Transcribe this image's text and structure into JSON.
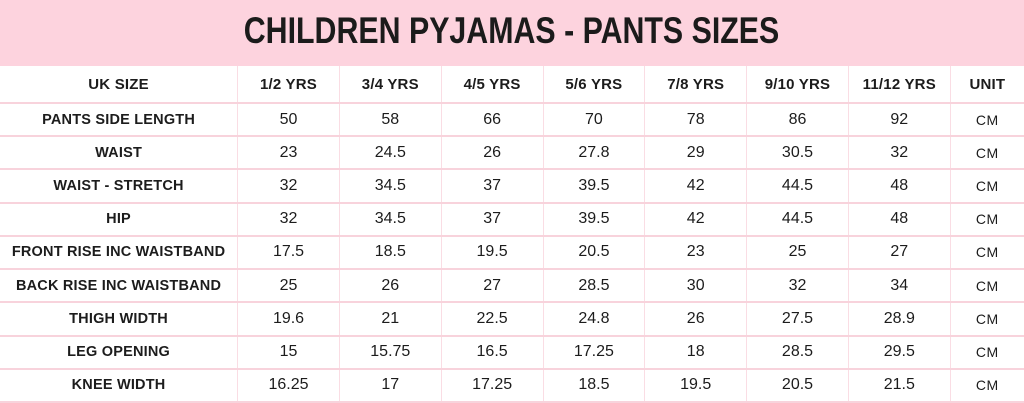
{
  "banner": {
    "background_color": "#fdd3de",
    "text_color": "#1b1b1b"
  },
  "table_style": {
    "grid_line_color": "#f8d3dc",
    "cell_background": "#ffffff"
  },
  "chart_data": {
    "type": "table",
    "title": "CHILDREN PYJAMAS - PANTS SIZES",
    "columns": [
      "UK SIZE",
      "1/2 YRS",
      "3/4 YRS",
      "4/5 YRS",
      "5/6 YRS",
      "7/8 YRS",
      "9/10 YRS",
      "11/12 YRS",
      "UNIT"
    ],
    "rows": [
      {
        "label": "PANTS SIDE LENGTH",
        "values": [
          "50",
          "58",
          "66",
          "70",
          "78",
          "86",
          "92"
        ],
        "unit": "CM"
      },
      {
        "label": "WAIST",
        "values": [
          "23",
          "24.5",
          "26",
          "27.8",
          "29",
          "30.5",
          "32"
        ],
        "unit": "CM"
      },
      {
        "label": "WAIST - STRETCH",
        "values": [
          "32",
          "34.5",
          "37",
          "39.5",
          "42",
          "44.5",
          "48"
        ],
        "unit": "CM"
      },
      {
        "label": "HIP",
        "values": [
          "32",
          "34.5",
          "37",
          "39.5",
          "42",
          "44.5",
          "48"
        ],
        "unit": "CM"
      },
      {
        "label": "FRONT RISE INC WAISTBAND",
        "values": [
          "17.5",
          "18.5",
          "19.5",
          "20.5",
          "23",
          "25",
          "27"
        ],
        "unit": "CM"
      },
      {
        "label": "BACK RISE INC WAISTBAND",
        "values": [
          "25",
          "26",
          "27",
          "28.5",
          "30",
          "32",
          "34"
        ],
        "unit": "CM"
      },
      {
        "label": "THIGH WIDTH",
        "values": [
          "19.6",
          "21",
          "22.5",
          "24.8",
          "26",
          "27.5",
          "28.9"
        ],
        "unit": "CM"
      },
      {
        "label": "LEG OPENING",
        "values": [
          "15",
          "15.75",
          "16.5",
          "17.25",
          "18",
          "28.5",
          "29.5"
        ],
        "unit": "CM"
      },
      {
        "label": "KNEE WIDTH",
        "values": [
          "16.25",
          "17",
          "17.25",
          "18.5",
          "19.5",
          "20.5",
          "21.5"
        ],
        "unit": "CM"
      }
    ]
  }
}
